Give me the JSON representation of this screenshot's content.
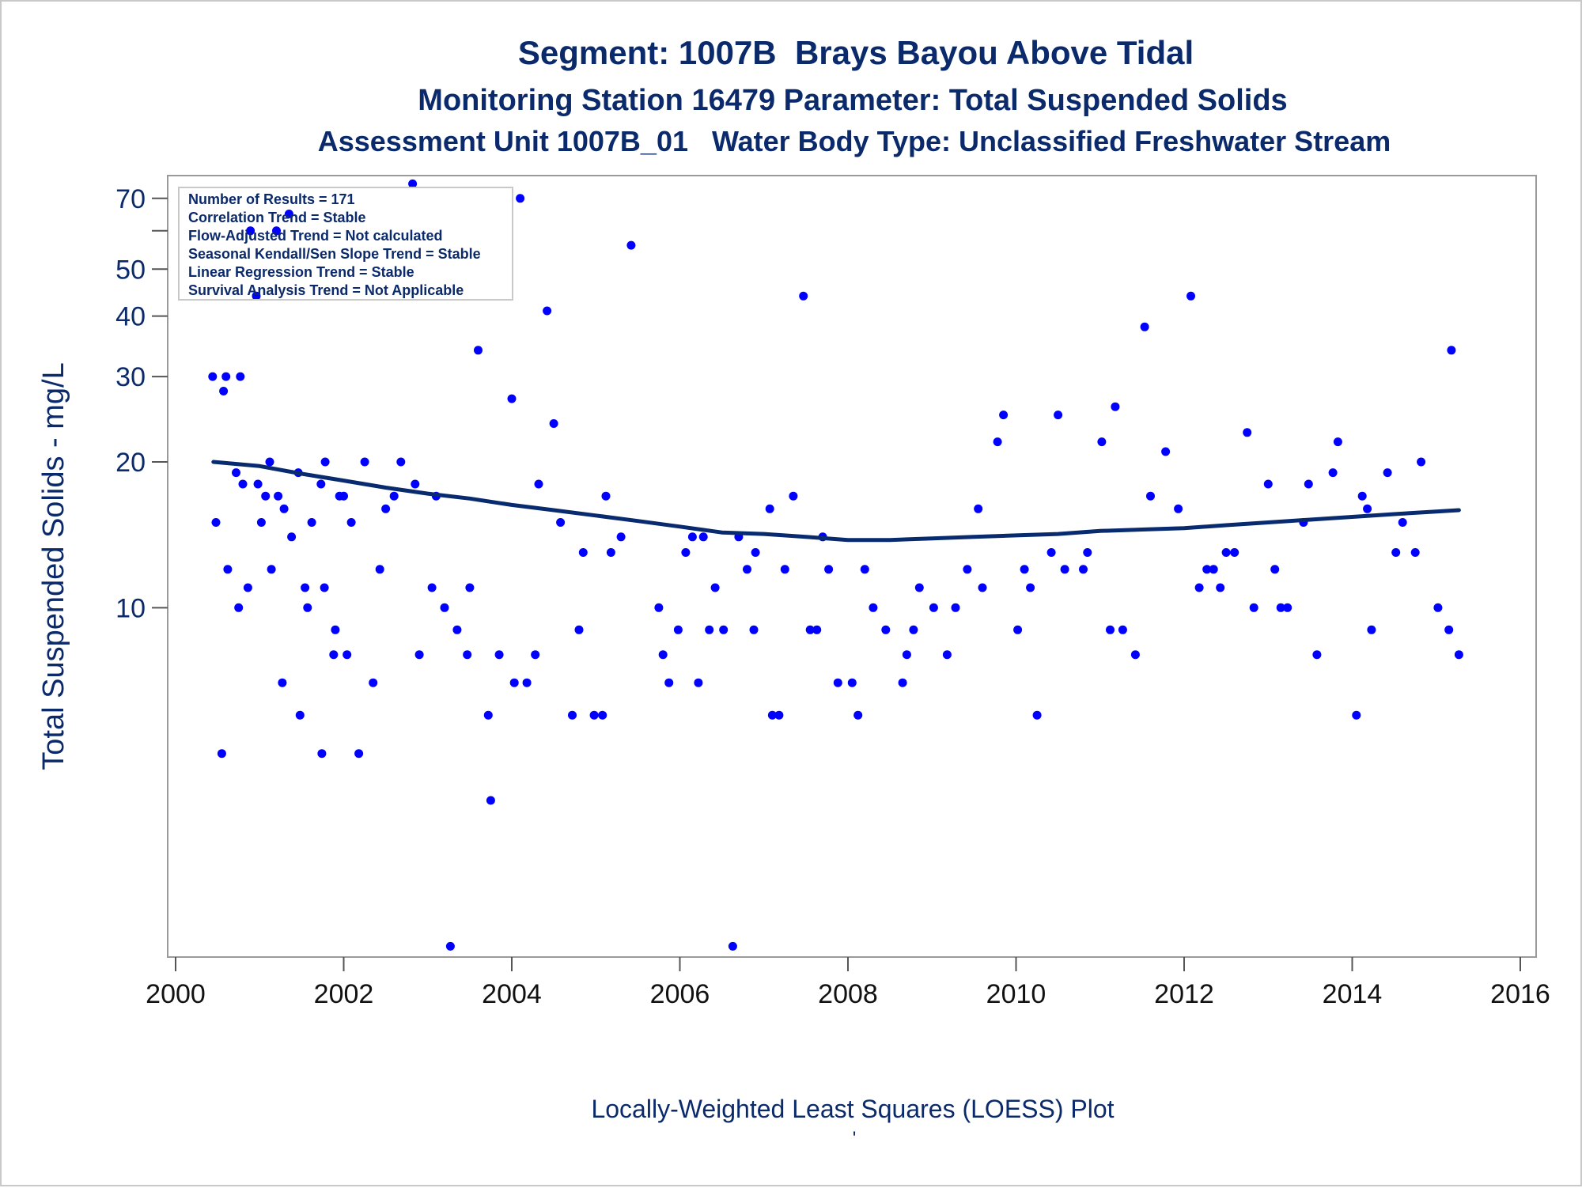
{
  "chart_data": {
    "type": "scatter",
    "title": "Segment: 1007B  Brays Bayou Above Tidal",
    "subtitle": "Monitoring Station 16479 Parameter: Total Suspended Solids",
    "subtitle2": "Assessment Unit 1007B_01   Water Body Type: Unclassified Freshwater Stream",
    "ylabel": "Total Suspended Solids - mg/L",
    "xlabel": "Locally-Weighted Least Squares (LOESS) Plot",
    "footnote": "'",
    "yscale": "log",
    "xlim": [
      2000,
      2016
    ],
    "ylim": [
      1.9,
      78
    ],
    "x_ticks": [
      2000,
      2002,
      2004,
      2006,
      2008,
      2010,
      2012,
      2014,
      2016
    ],
    "x_tick_labels": [
      "2000",
      "2002",
      "2004",
      "2006",
      "2008",
      "2010",
      "2012",
      "2014",
      "2016"
    ],
    "y_ticks": [
      10,
      20,
      30,
      40,
      50,
      70
    ],
    "y_tick_labels": [
      "10",
      "20",
      "30",
      "40",
      "50",
      "70"
    ],
    "y_minor_ticks": [
      60
    ],
    "stats": [
      "Number of Results = 171",
      "Correlation Trend = Stable",
      "Flow-Adjusted Trend = Not calculated",
      "Seasonal Kendall/Sen Slope Trend = Stable",
      "Linear Regression Trend = Stable",
      "Survival Analysis Trend = Not Applicable"
    ],
    "series": [
      {
        "type": "scatter",
        "color": "#0000ff",
        "points": [
          [
            2000.44,
            30
          ],
          [
            2000.48,
            15
          ],
          [
            2000.55,
            5
          ],
          [
            2000.57,
            28
          ],
          [
            2000.6,
            30
          ],
          [
            2000.62,
            12
          ],
          [
            2000.72,
            19
          ],
          [
            2000.75,
            10
          ],
          [
            2000.77,
            30
          ],
          [
            2000.8,
            18
          ],
          [
            2000.86,
            11
          ],
          [
            2000.89,
            60
          ],
          [
            2000.96,
            44
          ],
          [
            2000.98,
            18
          ],
          [
            2001.02,
            15
          ],
          [
            2001.07,
            17
          ],
          [
            2001.12,
            20
          ],
          [
            2001.14,
            12
          ],
          [
            2001.2,
            60
          ],
          [
            2001.22,
            17
          ],
          [
            2001.27,
            7
          ],
          [
            2001.29,
            16
          ],
          [
            2001.35,
            65
          ],
          [
            2001.38,
            14
          ],
          [
            2001.46,
            19
          ],
          [
            2001.48,
            6
          ],
          [
            2001.54,
            11
          ],
          [
            2001.57,
            10
          ],
          [
            2001.62,
            15
          ],
          [
            2001.73,
            18
          ],
          [
            2001.74,
            5
          ],
          [
            2001.77,
            11
          ],
          [
            2001.78,
            20
          ],
          [
            2001.88,
            8
          ],
          [
            2001.9,
            9
          ],
          [
            2001.95,
            17
          ],
          [
            2002.0,
            17
          ],
          [
            2002.04,
            8
          ],
          [
            2002.09,
            15
          ],
          [
            2002.18,
            5
          ],
          [
            2002.25,
            20
          ],
          [
            2002.35,
            7
          ],
          [
            2002.43,
            12
          ],
          [
            2002.5,
            16
          ],
          [
            2002.6,
            17
          ],
          [
            2002.68,
            20
          ],
          [
            2002.82,
            75
          ],
          [
            2002.85,
            18
          ],
          [
            2002.9,
            8
          ],
          [
            2003.05,
            11
          ],
          [
            2003.1,
            17
          ],
          [
            2003.2,
            10
          ],
          [
            2003.27,
            2
          ],
          [
            2003.35,
            9
          ],
          [
            2003.47,
            8
          ],
          [
            2003.5,
            11
          ],
          [
            2003.6,
            34
          ],
          [
            2003.72,
            6
          ],
          [
            2003.75,
            4
          ],
          [
            2003.85,
            8
          ],
          [
            2004.0,
            27
          ],
          [
            2004.03,
            7
          ],
          [
            2004.1,
            70
          ],
          [
            2004.18,
            7
          ],
          [
            2004.28,
            8
          ],
          [
            2004.32,
            18
          ],
          [
            2004.42,
            41
          ],
          [
            2004.5,
            24
          ],
          [
            2004.58,
            15
          ],
          [
            2004.72,
            6
          ],
          [
            2004.8,
            9
          ],
          [
            2004.85,
            13
          ],
          [
            2004.98,
            6
          ],
          [
            2005.08,
            6
          ],
          [
            2005.12,
            17
          ],
          [
            2005.18,
            13
          ],
          [
            2005.3,
            14
          ],
          [
            2005.42,
            56
          ],
          [
            2005.75,
            10
          ],
          [
            2005.8,
            8
          ],
          [
            2005.87,
            7
          ],
          [
            2005.98,
            9
          ],
          [
            2006.07,
            13
          ],
          [
            2006.15,
            14
          ],
          [
            2006.22,
            7
          ],
          [
            2006.28,
            14
          ],
          [
            2006.35,
            9
          ],
          [
            2006.42,
            11
          ],
          [
            2006.52,
            9
          ],
          [
            2006.63,
            2
          ],
          [
            2006.7,
            14
          ],
          [
            2006.8,
            12
          ],
          [
            2006.88,
            9
          ],
          [
            2006.9,
            13
          ],
          [
            2007.07,
            16
          ],
          [
            2007.1,
            6
          ],
          [
            2007.18,
            6
          ],
          [
            2007.25,
            12
          ],
          [
            2007.35,
            17
          ],
          [
            2007.47,
            44
          ],
          [
            2007.55,
            9
          ],
          [
            2007.63,
            9
          ],
          [
            2007.7,
            14
          ],
          [
            2007.77,
            12
          ],
          [
            2007.88,
            7
          ],
          [
            2008.05,
            7
          ],
          [
            2008.12,
            6
          ],
          [
            2008.2,
            12
          ],
          [
            2008.3,
            10
          ],
          [
            2008.45,
            9
          ],
          [
            2008.65,
            7
          ],
          [
            2008.7,
            8
          ],
          [
            2008.78,
            9
          ],
          [
            2008.85,
            11
          ],
          [
            2009.02,
            10
          ],
          [
            2009.18,
            8
          ],
          [
            2009.28,
            10
          ],
          [
            2009.42,
            12
          ],
          [
            2009.55,
            16
          ],
          [
            2009.6,
            11
          ],
          [
            2009.78,
            22
          ],
          [
            2009.85,
            25
          ],
          [
            2010.02,
            9
          ],
          [
            2010.1,
            12
          ],
          [
            2010.17,
            11
          ],
          [
            2010.25,
            6
          ],
          [
            2010.42,
            13
          ],
          [
            2010.5,
            25
          ],
          [
            2010.58,
            12
          ],
          [
            2010.8,
            12
          ],
          [
            2010.85,
            13
          ],
          [
            2011.02,
            22
          ],
          [
            2011.12,
            9
          ],
          [
            2011.18,
            26
          ],
          [
            2011.27,
            9
          ],
          [
            2011.42,
            8
          ],
          [
            2011.53,
            38
          ],
          [
            2011.6,
            17
          ],
          [
            2011.78,
            21
          ],
          [
            2011.93,
            16
          ],
          [
            2012.08,
            44
          ],
          [
            2012.18,
            11
          ],
          [
            2012.27,
            12
          ],
          [
            2012.35,
            12
          ],
          [
            2012.43,
            11
          ],
          [
            2012.5,
            13
          ],
          [
            2012.6,
            13
          ],
          [
            2012.75,
            23
          ],
          [
            2012.83,
            10
          ],
          [
            2013.0,
            18
          ],
          [
            2013.08,
            12
          ],
          [
            2013.15,
            10
          ],
          [
            2013.23,
            10
          ],
          [
            2013.42,
            15
          ],
          [
            2013.48,
            18
          ],
          [
            2013.58,
            8
          ],
          [
            2013.77,
            19
          ],
          [
            2013.83,
            22
          ],
          [
            2014.05,
            6
          ],
          [
            2014.12,
            17
          ],
          [
            2014.18,
            16
          ],
          [
            2014.23,
            9
          ],
          [
            2014.42,
            19
          ],
          [
            2014.52,
            13
          ],
          [
            2014.6,
            15
          ],
          [
            2014.75,
            13
          ],
          [
            2014.82,
            20
          ],
          [
            2015.02,
            10
          ],
          [
            2015.15,
            9
          ],
          [
            2015.18,
            34
          ],
          [
            2015.27,
            8
          ]
        ]
      },
      {
        "type": "line",
        "color": "#082a6e",
        "points": [
          [
            2000.45,
            20.0
          ],
          [
            2001.0,
            19.6
          ],
          [
            2001.5,
            18.9
          ],
          [
            2002.0,
            18.3
          ],
          [
            2002.5,
            17.7
          ],
          [
            2003.0,
            17.2
          ],
          [
            2003.5,
            16.8
          ],
          [
            2004.0,
            16.3
          ],
          [
            2004.5,
            15.9
          ],
          [
            2005.0,
            15.5
          ],
          [
            2005.5,
            15.1
          ],
          [
            2006.0,
            14.7
          ],
          [
            2006.5,
            14.3
          ],
          [
            2007.0,
            14.2
          ],
          [
            2007.5,
            14.0
          ],
          [
            2008.0,
            13.8
          ],
          [
            2008.5,
            13.8
          ],
          [
            2009.0,
            13.9
          ],
          [
            2009.5,
            14.0
          ],
          [
            2010.0,
            14.1
          ],
          [
            2010.5,
            14.2
          ],
          [
            2011.0,
            14.4
          ],
          [
            2011.5,
            14.5
          ],
          [
            2012.0,
            14.6
          ],
          [
            2012.5,
            14.8
          ],
          [
            2013.0,
            15.0
          ],
          [
            2013.5,
            15.2
          ],
          [
            2014.0,
            15.4
          ],
          [
            2014.5,
            15.6
          ],
          [
            2015.0,
            15.8
          ],
          [
            2015.27,
            15.9
          ]
        ]
      }
    ]
  }
}
